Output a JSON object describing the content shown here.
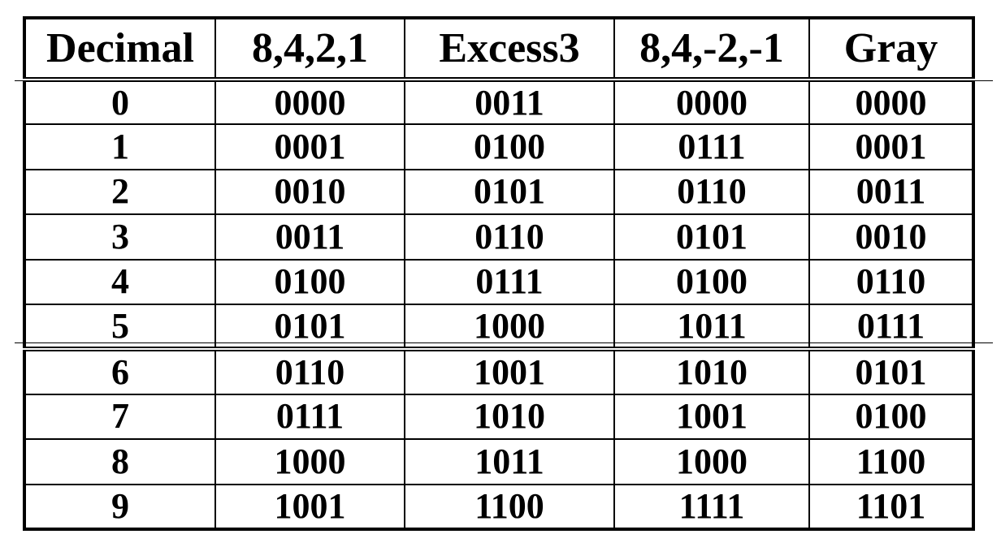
{
  "table": {
    "headers": [
      "Decimal",
      "8,4,2,1",
      "Excess3",
      "8,4,-2,-1",
      "Gray"
    ],
    "rows": [
      [
        "0",
        "0000",
        "0011",
        "0000",
        "0000"
      ],
      [
        "1",
        "0001",
        "0100",
        "0111",
        "0001"
      ],
      [
        "2",
        "0010",
        "0101",
        "0110",
        "0011"
      ],
      [
        "3",
        "0011",
        "0110",
        "0101",
        "0010"
      ],
      [
        "4",
        "0100",
        "0111",
        "0100",
        "0110"
      ],
      [
        "5",
        "0101",
        "1000",
        "1011",
        "0111"
      ],
      [
        "6",
        "0110",
        "1001",
        "1010",
        "0101"
      ],
      [
        "7",
        "0111",
        "1010",
        "1001",
        "0100"
      ],
      [
        "8",
        "1000",
        "1011",
        "1000",
        "1100"
      ],
      [
        "9",
        "1001",
        "1100",
        "1111",
        "1101"
      ]
    ]
  }
}
